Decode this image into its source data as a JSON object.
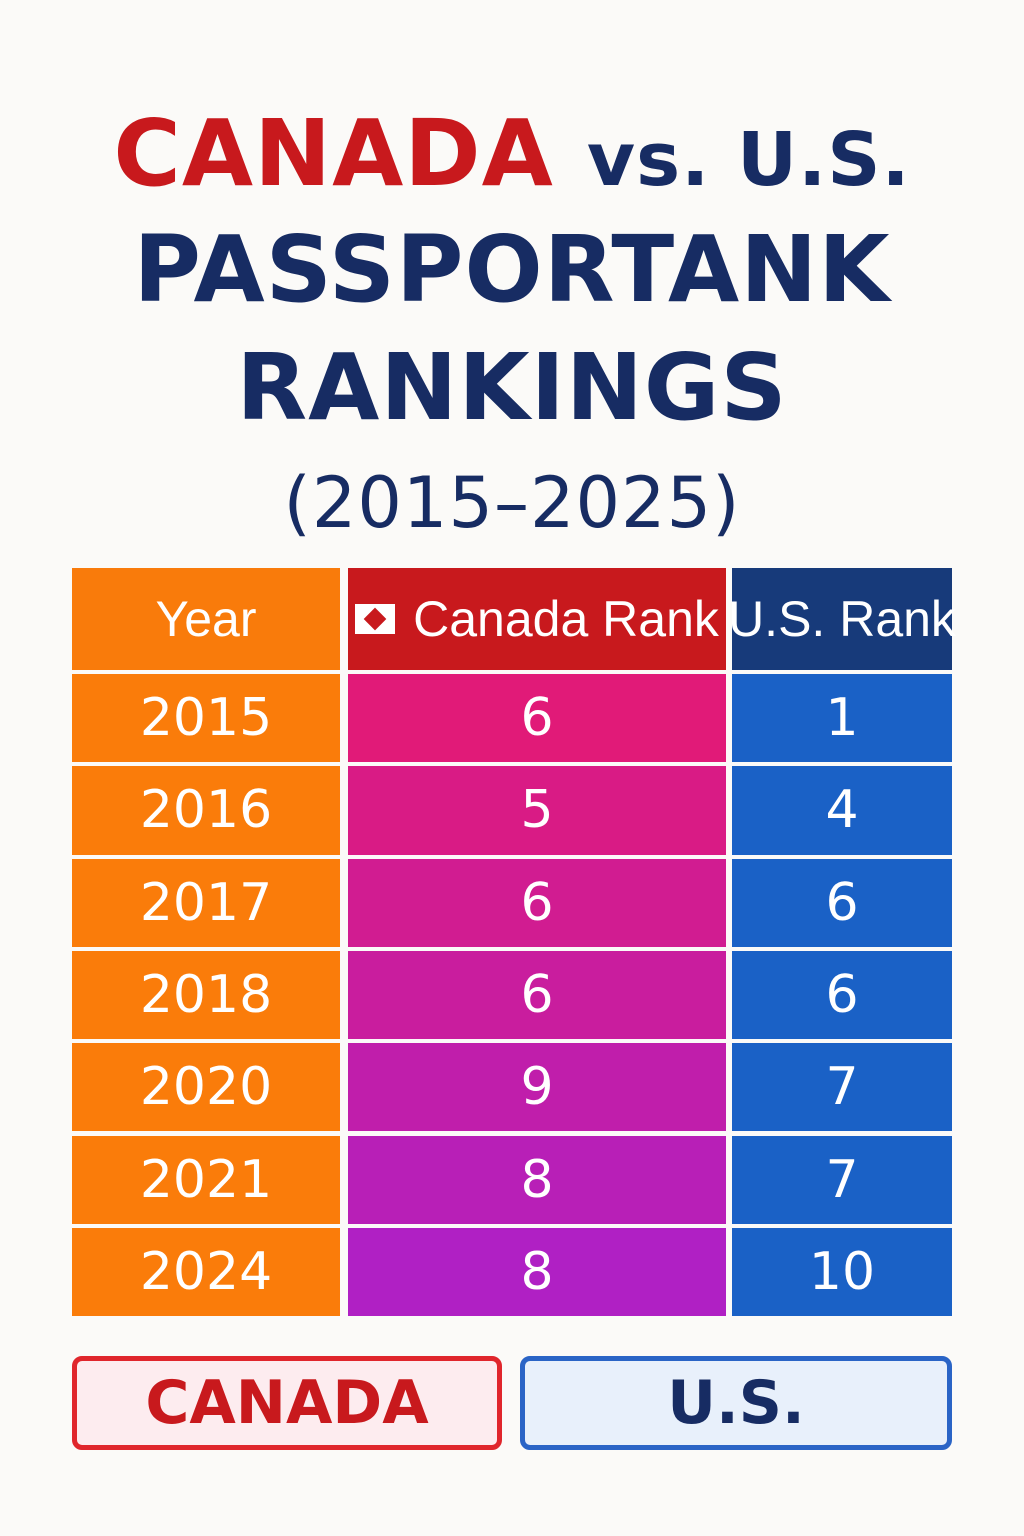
{
  "header": {
    "line1_red": "CANADA",
    "line1_rest": "vs. U.S.",
    "line2": "PASSPORTANK",
    "line3": "RANKINGS",
    "line4": "(2015–2025)"
  },
  "table": {
    "headers": [
      "Year",
      "Canada Rank",
      "U.S. Rank"
    ]
  },
  "legend": {
    "canada": "CANADA",
    "us": "U.S."
  },
  "colors": {
    "canada_red": "#c8191d",
    "navy": "#172c63",
    "year_orange": "#fa7c0a",
    "us_blue": "#1a61c6",
    "us_header_blue": "#173a7a"
  },
  "chart_data": {
    "type": "table",
    "title": "CANADA vs. U.S. PASSPORTANK RANKINGS (2015–2025)",
    "columns": [
      "Year",
      "Canada Rank",
      "U.S. Rank"
    ],
    "rows": [
      [
        "2015",
        "6",
        "1"
      ],
      [
        "2016",
        "5",
        "4"
      ],
      [
        "2017",
        "6",
        "6"
      ],
      [
        "2018",
        "6",
        "6"
      ],
      [
        "2020",
        "9",
        "7"
      ],
      [
        "2021",
        "8",
        "7"
      ],
      [
        "2024",
        "8",
        "10"
      ]
    ]
  }
}
